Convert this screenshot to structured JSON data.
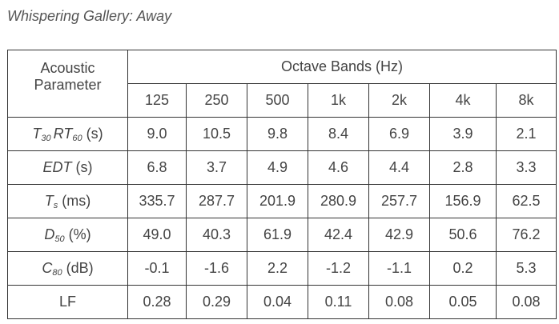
{
  "title": "Whispering Gallery: Away",
  "table": {
    "header": {
      "parameter": "Acoustic Parameter",
      "bands_title": "Octave Bands (Hz)",
      "bands": [
        "125",
        "250",
        "500",
        "1k",
        "2k",
        "4k",
        "8k"
      ]
    },
    "rows": [
      {
        "parameter": {
          "symbol": "T",
          "sub": "30",
          "symbol2": "RT",
          "sub2": "60",
          "unit": "(s)"
        },
        "values": [
          "9.0",
          "10.5",
          "9.8",
          "8.4",
          "6.9",
          "3.9",
          "2.1"
        ]
      },
      {
        "parameter": {
          "symbol": "EDT",
          "unit": "(s)"
        },
        "values": [
          "6.8",
          "3.7",
          "4.9",
          "4.6",
          "4.4",
          "2.8",
          "3.3"
        ]
      },
      {
        "parameter": {
          "symbol": "T",
          "sub": "s",
          "unit": "(ms)"
        },
        "values": [
          "335.7",
          "287.7",
          "201.9",
          "280.9",
          "257.7",
          "156.9",
          "62.5"
        ]
      },
      {
        "parameter": {
          "symbol": "D",
          "sub": "50",
          "unit": "(%)"
        },
        "values": [
          "49.0",
          "40.3",
          "61.9",
          "42.4",
          "42.9",
          "50.6",
          "76.2"
        ]
      },
      {
        "parameter": {
          "symbol": "C",
          "sub": "80",
          "unit": "(dB)"
        },
        "values": [
          "-0.1",
          "-1.6",
          "2.2",
          "-1.2",
          "-1.1",
          "0.2",
          "5.3"
        ]
      },
      {
        "parameter": {
          "plain": "LF"
        },
        "values": [
          "0.28",
          "0.29",
          "0.04",
          "0.11",
          "0.08",
          "0.05",
          "0.08"
        ]
      }
    ]
  }
}
